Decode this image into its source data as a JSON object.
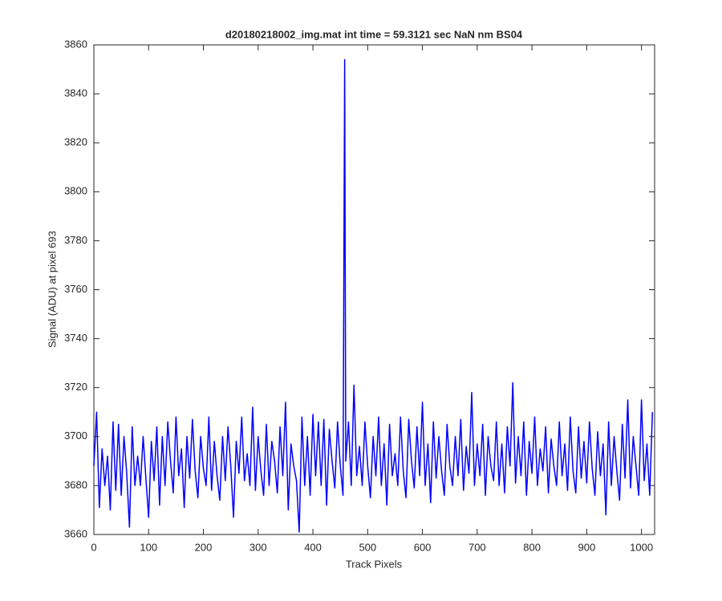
{
  "chart_data": {
    "type": "line",
    "title": "d20180218002_img.mat int time = 59.3121 sec  NaN nm BS04",
    "xlabel": "Track Pixels",
    "ylabel": "Signal (ADU) at pixel 693",
    "xlim": [
      0,
      1024
    ],
    "ylim": [
      3660,
      3860
    ],
    "xticks": [
      0,
      100,
      200,
      300,
      400,
      500,
      600,
      700,
      800,
      900,
      1000
    ],
    "yticks": [
      3660,
      3680,
      3700,
      3720,
      3740,
      3760,
      3780,
      3800,
      3820,
      3840,
      3860
    ],
    "grid": false,
    "x": [
      0,
      5,
      10,
      15,
      20,
      25,
      30,
      35,
      40,
      45,
      50,
      55,
      60,
      65,
      70,
      75,
      80,
      85,
      90,
      95,
      100,
      105,
      110,
      115,
      120,
      125,
      130,
      135,
      140,
      145,
      150,
      155,
      160,
      165,
      170,
      175,
      180,
      185,
      190,
      195,
      200,
      205,
      210,
      215,
      220,
      225,
      230,
      235,
      240,
      245,
      250,
      255,
      260,
      265,
      270,
      275,
      280,
      285,
      290,
      295,
      300,
      305,
      310,
      315,
      320,
      325,
      330,
      335,
      340,
      345,
      350,
      355,
      360,
      365,
      370,
      375,
      380,
      385,
      390,
      395,
      400,
      405,
      410,
      415,
      420,
      425,
      430,
      435,
      440,
      445,
      450,
      455,
      458,
      460,
      465,
      470,
      475,
      480,
      485,
      490,
      495,
      500,
      505,
      510,
      515,
      520,
      525,
      530,
      535,
      540,
      545,
      550,
      555,
      560,
      565,
      570,
      575,
      580,
      585,
      590,
      595,
      600,
      605,
      610,
      615,
      620,
      625,
      630,
      635,
      640,
      645,
      650,
      655,
      660,
      665,
      670,
      675,
      680,
      685,
      690,
      695,
      700,
      705,
      710,
      715,
      720,
      725,
      730,
      735,
      740,
      745,
      750,
      755,
      760,
      765,
      770,
      775,
      780,
      785,
      790,
      795,
      800,
      805,
      810,
      815,
      820,
      825,
      830,
      835,
      840,
      845,
      850,
      855,
      860,
      865,
      870,
      875,
      880,
      885,
      890,
      895,
      900,
      905,
      910,
      915,
      920,
      925,
      930,
      935,
      940,
      945,
      950,
      955,
      960,
      965,
      970,
      975,
      980,
      985,
      990,
      995,
      1000,
      1005,
      1010,
      1015,
      1020
    ],
    "series": [
      {
        "color": "#0000ff",
        "values": [
          3688,
          3710,
          3671,
          3695,
          3680,
          3692,
          3670,
          3706,
          3678,
          3705,
          3676,
          3700,
          3685,
          3663,
          3704,
          3680,
          3692,
          3680,
          3700,
          3683,
          3667,
          3698,
          3682,
          3704,
          3672,
          3700,
          3680,
          3706,
          3690,
          3677,
          3708,
          3684,
          3695,
          3671,
          3700,
          3683,
          3707,
          3686,
          3675,
          3700,
          3687,
          3680,
          3708,
          3678,
          3698,
          3684,
          3674,
          3700,
          3682,
          3704,
          3688,
          3667,
          3698,
          3685,
          3708,
          3682,
          3693,
          3680,
          3712,
          3678,
          3700,
          3686,
          3676,
          3705,
          3680,
          3698,
          3690,
          3677,
          3704,
          3684,
          3714,
          3670,
          3697,
          3688,
          3682,
          3661,
          3708,
          3680,
          3700,
          3676,
          3709,
          3684,
          3706,
          3680,
          3707,
          3672,
          3703,
          3690,
          3679,
          3706,
          3688,
          3676,
          3854,
          3690,
          3706,
          3680,
          3721,
          3684,
          3696,
          3680,
          3706,
          3688,
          3675,
          3700,
          3684,
          3708,
          3680,
          3697,
          3672,
          3705,
          3684,
          3693,
          3680,
          3708,
          3686,
          3675,
          3707,
          3690,
          3679,
          3704,
          3684,
          3714,
          3680,
          3697,
          3673,
          3706,
          3683,
          3700,
          3686,
          3676,
          3705,
          3688,
          3680,
          3700,
          3684,
          3707,
          3678,
          3696,
          3685,
          3718,
          3680,
          3697,
          3684,
          3705,
          3676,
          3700,
          3688,
          3682,
          3706,
          3680,
          3697,
          3677,
          3704,
          3688,
          3722,
          3681,
          3700,
          3684,
          3706,
          3676,
          3698,
          3685,
          3708,
          3680,
          3695,
          3686,
          3704,
          3677,
          3699,
          3688,
          3680,
          3706,
          3684,
          3697,
          3678,
          3708,
          3686,
          3677,
          3704,
          3683,
          3698,
          3681,
          3706,
          3687,
          3676,
          3702,
          3684,
          3697,
          3668,
          3706,
          3680,
          3700,
          3686,
          3674,
          3705,
          3683,
          3715,
          3679,
          3700,
          3688,
          3676,
          3715,
          3682,
          3697,
          3676,
          3710
        ]
      }
    ]
  }
}
